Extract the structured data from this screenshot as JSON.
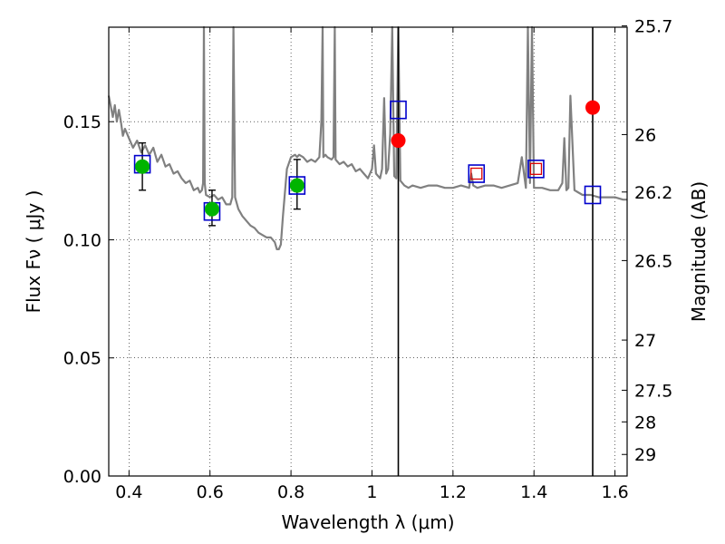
{
  "chart_data": {
    "type": "line",
    "xlabel": "Wavelength  λ (μm)",
    "ylabel": "Flux  Fν  ( μJy )",
    "y2label": "Magnitude (AB)",
    "xlim": [
      0.35,
      1.63
    ],
    "ylim": [
      0.0,
      0.19
    ],
    "grid": true,
    "x_ticks": [
      0.4,
      0.6,
      0.8,
      1.0,
      1.2,
      1.4,
      1.6
    ],
    "x_tick_labels": [
      "0.4",
      "0.6",
      "0.8",
      "1",
      "1.2",
      "1.4",
      "1.6"
    ],
    "y_ticks": [
      0.0,
      0.05,
      0.1,
      0.15
    ],
    "y_tick_labels": [
      "0.00",
      "0.05",
      "0.10",
      "0.15"
    ],
    "mag_ticks": [
      25.7,
      26,
      26.2,
      26.5,
      27,
      27.5,
      28,
      29
    ],
    "mag_tick_labels": [
      "25.7",
      "26",
      "26.2",
      "26.5",
      "27",
      "27.5",
      "28",
      "29"
    ],
    "vertical_lines_x": [
      1.065,
      1.545
    ],
    "series": [
      {
        "kind": "model-spectrum",
        "color": "#808080",
        "x": [
          0.35,
          0.36,
          0.365,
          0.37,
          0.375,
          0.38,
          0.385,
          0.39,
          0.4,
          0.41,
          0.42,
          0.43,
          0.44,
          0.45,
          0.46,
          0.47,
          0.48,
          0.49,
          0.5,
          0.51,
          0.52,
          0.53,
          0.54,
          0.55,
          0.56,
          0.57,
          0.575,
          0.58,
          0.583,
          0.585,
          0.587,
          0.59,
          0.6,
          0.61,
          0.62,
          0.63,
          0.64,
          0.65,
          0.655,
          0.658,
          0.662,
          0.67,
          0.68,
          0.69,
          0.7,
          0.71,
          0.72,
          0.73,
          0.74,
          0.75,
          0.76,
          0.765,
          0.77,
          0.775,
          0.78,
          0.79,
          0.8,
          0.81,
          0.815,
          0.82,
          0.83,
          0.84,
          0.85,
          0.86,
          0.87,
          0.875,
          0.878,
          0.88,
          0.885,
          0.89,
          0.9,
          0.905,
          0.908,
          0.91,
          0.915,
          0.92,
          0.93,
          0.94,
          0.95,
          0.96,
          0.97,
          0.98,
          0.99,
          1.0,
          1.005,
          1.01,
          1.015,
          1.02,
          1.025,
          1.03,
          1.035,
          1.04,
          1.045,
          1.05,
          1.055,
          1.06,
          1.065,
          1.07,
          1.08,
          1.09,
          1.1,
          1.12,
          1.14,
          1.16,
          1.18,
          1.2,
          1.22,
          1.24,
          1.245,
          1.25,
          1.26,
          1.28,
          1.3,
          1.32,
          1.34,
          1.36,
          1.37,
          1.38,
          1.385,
          1.39,
          1.395,
          1.4,
          1.41,
          1.42,
          1.44,
          1.46,
          1.47,
          1.475,
          1.48,
          1.485,
          1.49,
          1.5,
          1.52,
          1.54,
          1.56,
          1.58,
          1.6,
          1.62,
          1.63
        ],
        "y": [
          0.161,
          0.152,
          0.157,
          0.15,
          0.155,
          0.15,
          0.144,
          0.147,
          0.143,
          0.139,
          0.142,
          0.137,
          0.14,
          0.136,
          0.139,
          0.133,
          0.136,
          0.131,
          0.132,
          0.128,
          0.129,
          0.126,
          0.124,
          0.125,
          0.121,
          0.122,
          0.12,
          0.121,
          0.124,
          0.19,
          0.124,
          0.119,
          0.118,
          0.119,
          0.117,
          0.118,
          0.115,
          0.115,
          0.118,
          0.19,
          0.118,
          0.113,
          0.11,
          0.108,
          0.106,
          0.105,
          0.103,
          0.102,
          0.101,
          0.101,
          0.099,
          0.096,
          0.096,
          0.098,
          0.11,
          0.13,
          0.135,
          0.136,
          0.135,
          0.136,
          0.135,
          0.133,
          0.134,
          0.133,
          0.135,
          0.15,
          0.19,
          0.135,
          0.136,
          0.135,
          0.134,
          0.135,
          0.19,
          0.134,
          0.133,
          0.132,
          0.133,
          0.131,
          0.132,
          0.129,
          0.13,
          0.128,
          0.126,
          0.13,
          0.14,
          0.128,
          0.127,
          0.126,
          0.13,
          0.16,
          0.128,
          0.13,
          0.145,
          0.19,
          0.127,
          0.126,
          0.19,
          0.125,
          0.123,
          0.122,
          0.123,
          0.122,
          0.123,
          0.123,
          0.122,
          0.122,
          0.123,
          0.122,
          0.128,
          0.123,
          0.122,
          0.123,
          0.123,
          0.122,
          0.123,
          0.124,
          0.135,
          0.122,
          0.19,
          0.124,
          0.19,
          0.122,
          0.122,
          0.122,
          0.121,
          0.121,
          0.124,
          0.143,
          0.121,
          0.122,
          0.161,
          0.121,
          0.119,
          0.119,
          0.118,
          0.118,
          0.118,
          0.117,
          0.117
        ]
      },
      {
        "kind": "model-photometry",
        "marker": "open-square",
        "color": "#0000cc",
        "x": [
          0.433,
          0.605,
          0.815,
          1.065,
          1.258,
          1.405,
          1.545
        ],
        "y": [
          0.132,
          0.112,
          0.123,
          0.155,
          0.128,
          0.13,
          0.119
        ]
      },
      {
        "kind": "observed-photometry",
        "marker": "filled-circle",
        "color": "#00b400",
        "x": [
          0.433,
          0.605,
          0.815
        ],
        "y": [
          0.131,
          0.113,
          0.123
        ],
        "yerr_low": [
          0.01,
          0.007,
          0.01
        ],
        "yerr_high": [
          0.01,
          0.008,
          0.011
        ]
      },
      {
        "kind": "observed-photometry",
        "marker": "filled-circle",
        "color": "#ff0000",
        "x": [
          1.065,
          1.545
        ],
        "y": [
          0.142,
          0.156
        ]
      },
      {
        "kind": "observed-photometry",
        "marker": "small-open-square",
        "color": "#dd0000",
        "x": [
          1.258,
          1.405
        ],
        "y": [
          0.128,
          0.13
        ]
      }
    ]
  }
}
